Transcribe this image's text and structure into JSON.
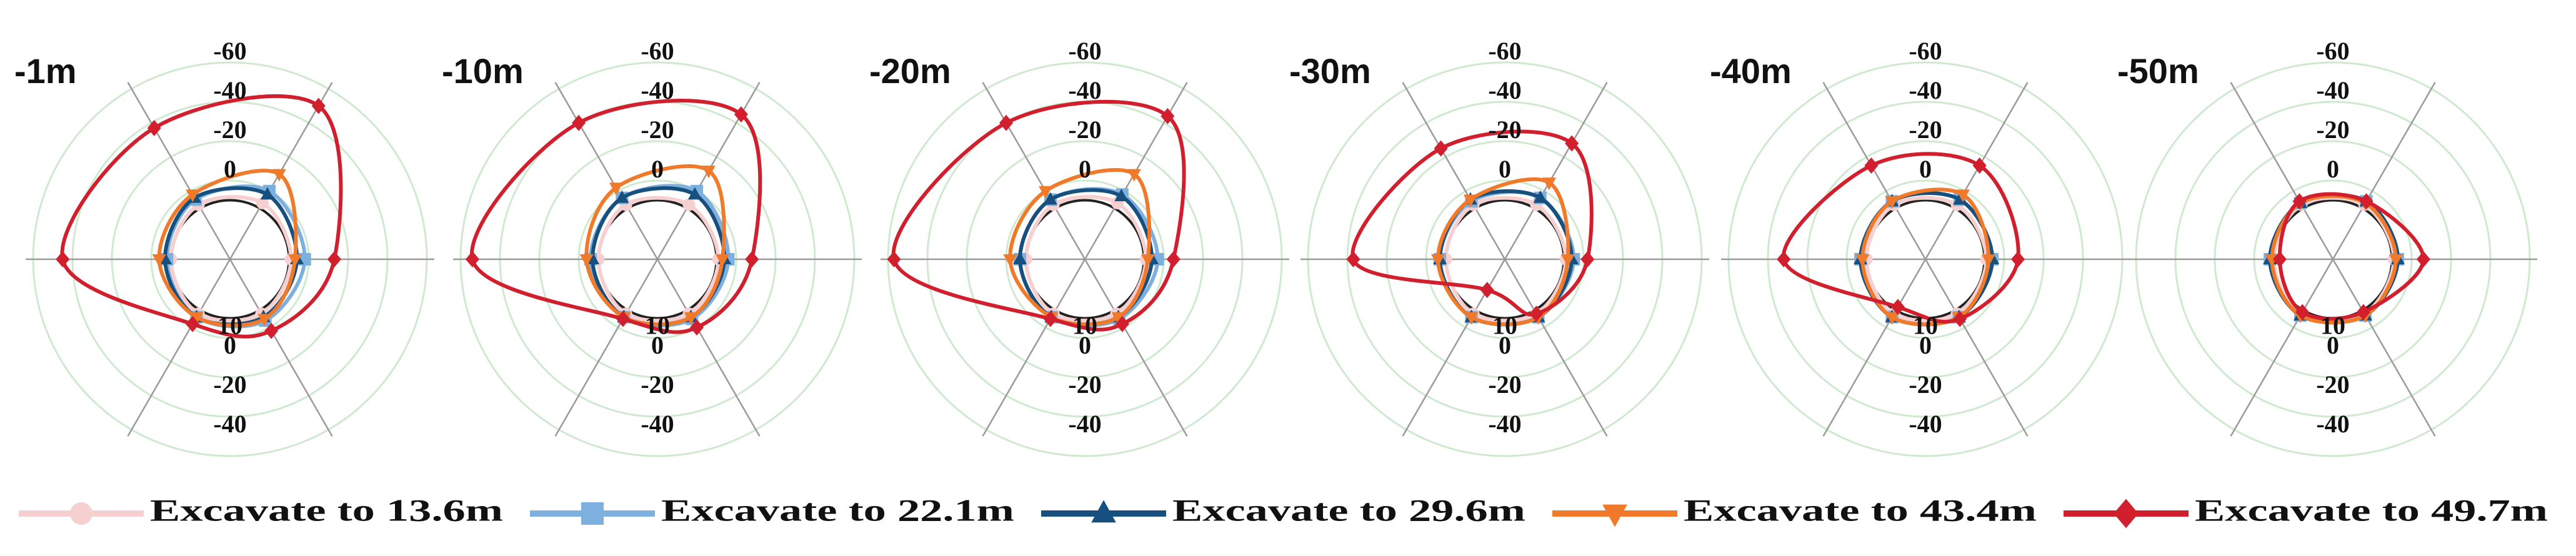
{
  "legend": {
    "series": [
      {
        "name": "Excavate to 13.6m",
        "color": "#f6cfd0",
        "marker": "circle"
      },
      {
        "name": "Excavate to 22.1m",
        "color": "#7eb0df",
        "marker": "square"
      },
      {
        "name": "Excavate to 29.6m",
        "color": "#17507f",
        "marker": "triangle"
      },
      {
        "name": "Excavate to 43.4m",
        "color": "#f07a2a",
        "marker": "triangle-down"
      },
      {
        "name": "Excavate to 49.7m",
        "color": "#d21f2e",
        "marker": "diamond"
      }
    ]
  },
  "chart_data": [
    {
      "type": "radar",
      "title": "-1m",
      "categories": [
        null,
        null,
        null,
        null,
        null,
        null
      ],
      "rlim": [
        40,
        -60
      ],
      "rticks": [
        10,
        0,
        -20,
        -40,
        -60
      ],
      "series": [
        {
          "values": [
            9,
            7,
            8,
            10,
            8,
            8
          ]
        },
        {
          "values": [
            2,
            0,
            5,
            8,
            6,
            4
          ]
        },
        {
          "values": [
            6,
            2,
            4,
            7,
            6,
            6
          ]
        },
        {
          "values": [
            7,
            -10,
            2,
            4,
            6,
            5
          ]
        },
        {
          "values": [
            -13,
            -50,
            -37,
            -45,
            2,
            -2
          ]
        }
      ]
    },
    {
      "type": "radar",
      "title": "-10m",
      "categories": [
        null,
        null,
        null,
        null,
        null,
        null
      ],
      "rlim": [
        40,
        -60
      ],
      "rticks": [
        10,
        0,
        -20,
        -40,
        -60
      ],
      "series": [
        {
          "values": [
            9,
            8,
            8,
            10,
            8,
            8
          ]
        },
        {
          "values": [
            4,
            0,
            4,
            6,
            6,
            5
          ]
        },
        {
          "values": [
            6,
            2,
            4,
            7,
            6,
            6
          ]
        },
        {
          "values": [
            7,
            -12,
            -2,
            4,
            6,
            6
          ]
        },
        {
          "values": [
            -8,
            -45,
            -40,
            -54,
            5,
            0
          ]
        }
      ]
    },
    {
      "type": "radar",
      "title": "-20m",
      "categories": [
        null,
        null,
        null,
        null,
        null,
        null
      ],
      "rlim": [
        40,
        -60
      ],
      "rticks": [
        10,
        0,
        -20,
        -40,
        -60
      ],
      "series": [
        {
          "values": [
            9,
            7,
            8,
            10,
            8,
            8
          ]
        },
        {
          "values": [
            3,
            2,
            5,
            7,
            6,
            5
          ]
        },
        {
          "values": [
            6,
            3,
            5,
            7,
            6,
            6
          ]
        },
        {
          "values": [
            8,
            -10,
            0,
            2,
            6,
            6
          ]
        },
        {
          "values": [
            -5,
            -44,
            -40,
            -57,
            5,
            2
          ]
        }
      ]
    },
    {
      "type": "radar",
      "title": "-30m",
      "categories": [
        null,
        null,
        null,
        null,
        null,
        null
      ],
      "rlim": [
        40,
        -60
      ],
      "rticks": [
        10,
        0,
        -20,
        -40,
        -60
      ],
      "series": [
        {
          "values": [
            9,
            8,
            8,
            10,
            8,
            8
          ]
        },
        {
          "values": [
            5,
            4,
            6,
            7,
            6,
            6
          ]
        },
        {
          "values": [
            6,
            4,
            5,
            7,
            6,
            6
          ]
        },
        {
          "values": [
            8,
            -5,
            5,
            6,
            6,
            6
          ]
        },
        {
          "values": [
            -2,
            -28,
            -25,
            -37,
            22,
            8
          ]
        }
      ]
    },
    {
      "type": "radar",
      "title": "-40m",
      "categories": [
        null,
        null,
        null,
        null,
        null,
        null
      ],
      "rlim": [
        40,
        -60
      ],
      "rticks": [
        10,
        0,
        -20,
        -40,
        -60
      ],
      "series": [
        {
          "values": [
            9,
            8,
            8,
            10,
            8,
            8
          ]
        },
        {
          "values": [
            6,
            5,
            6,
            7,
            6,
            6
          ]
        },
        {
          "values": [
            6,
            5,
            6,
            7,
            6,
            6
          ]
        },
        {
          "values": [
            8,
            2,
            6,
            8,
            6,
            6
          ]
        },
        {
          "values": [
            -7,
            -15,
            -15,
            -32,
            12,
            5
          ]
        }
      ]
    },
    {
      "type": "radar",
      "title": "-50m",
      "categories": [
        null,
        null,
        null,
        null,
        null,
        null
      ],
      "rlim": [
        40,
        -60
      ],
      "rticks": [
        10,
        0,
        -20,
        -40,
        -60
      ],
      "series": [
        {
          "values": [
            9,
            8,
            8,
            10,
            8,
            8
          ]
        },
        {
          "values": [
            7,
            6,
            7,
            8,
            7,
            7
          ]
        },
        {
          "values": [
            7,
            6,
            7,
            8,
            7,
            7
          ]
        },
        {
          "values": [
            8,
            7,
            7,
            9,
            7,
            7
          ]
        },
        {
          "values": [
            -6,
            6,
            6,
            13,
            9,
            9
          ]
        }
      ]
    }
  ]
}
